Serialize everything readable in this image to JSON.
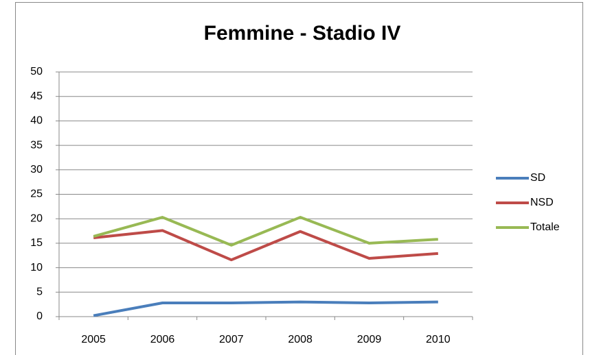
{
  "chart_data": {
    "type": "line",
    "title": "Femmine - Stadio IV",
    "categories": [
      "2005",
      "2006",
      "2007",
      "2008",
      "2009",
      "2010"
    ],
    "series": [
      {
        "name": "SD",
        "color": "#4a7ebb",
        "values": [
          0.2,
          2.8,
          2.8,
          3.0,
          2.8,
          3.0
        ]
      },
      {
        "name": "NSD",
        "color": "#be4b48",
        "values": [
          16.1,
          17.6,
          11.6,
          17.4,
          11.9,
          12.9
        ]
      },
      {
        "name": "Totale",
        "color": "#98b954",
        "values": [
          16.4,
          20.3,
          14.6,
          20.3,
          15.0,
          15.8
        ]
      }
    ],
    "ylim": [
      0,
      50
    ],
    "yticks": [
      0,
      5,
      10,
      15,
      20,
      25,
      30,
      35,
      40,
      45,
      50
    ],
    "grid": true,
    "legend": "right"
  }
}
